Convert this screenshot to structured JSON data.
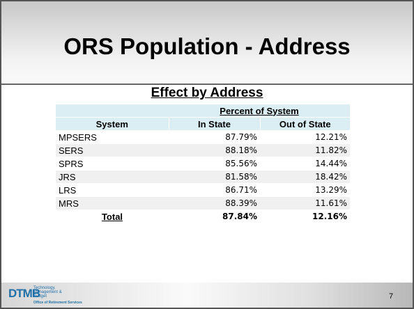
{
  "slide": {
    "title": "ORS Population - Address",
    "subtitle": "Effect by Address",
    "page_number": "7"
  },
  "table": {
    "group_header": "Percent of System",
    "columns": [
      "System",
      "In State",
      "Out of State"
    ],
    "rows": [
      [
        "MPSERS",
        "87.79%",
        "12.21%"
      ],
      [
        "SERS",
        "88.18%",
        "11.82%"
      ],
      [
        "SPRS",
        "85.56%",
        "14.44%"
      ],
      [
        "JRS",
        "81.58%",
        "18.42%"
      ],
      [
        "LRS",
        "86.71%",
        "13.29%"
      ],
      [
        "MRS",
        "88.39%",
        "11.61%"
      ]
    ],
    "total": [
      "Total",
      "87.84%",
      "12.16%"
    ]
  },
  "footer": {
    "logo": "DTMB",
    "logo_lines": [
      "Technology,",
      "Management &",
      "Budget"
    ],
    "office": "Office of Retirement Services"
  }
}
